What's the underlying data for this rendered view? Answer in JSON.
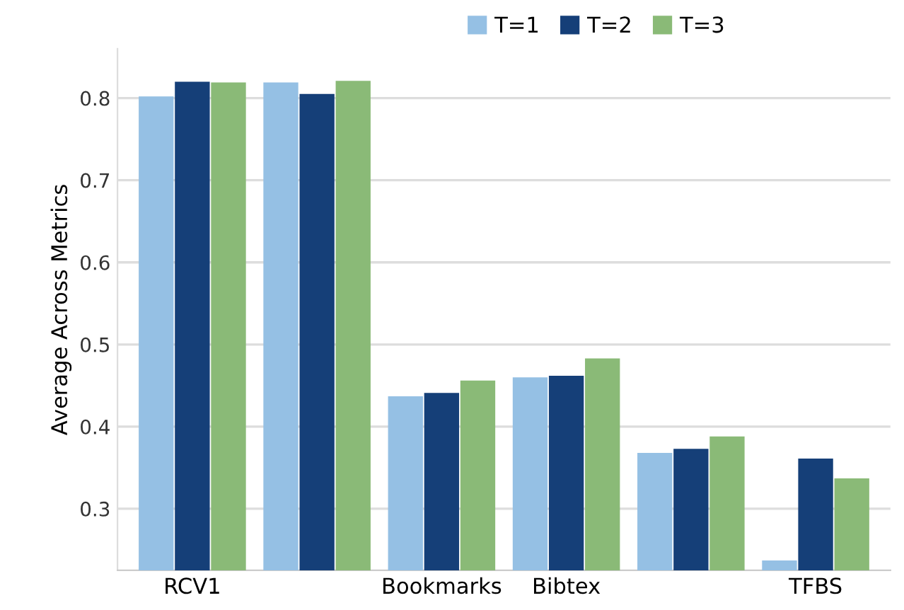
{
  "chart_data": {
    "type": "bar",
    "ylabel": "Average Across Metrics",
    "categories": [
      "RCV1",
      null,
      "Bookmarks",
      "Bibtex",
      null,
      "TFBS"
    ],
    "series": [
      {
        "name": "T=1",
        "color": "#95c0e4",
        "values": [
          0.802,
          0.819,
          0.437,
          0.46,
          0.368,
          0.237
        ]
      },
      {
        "name": "T=2",
        "color": "#153f78",
        "values": [
          0.82,
          0.805,
          0.441,
          0.462,
          0.373,
          0.361
        ]
      },
      {
        "name": "T=3",
        "color": "#8aba77",
        "values": [
          0.819,
          0.821,
          0.456,
          0.483,
          0.388,
          0.337
        ]
      }
    ],
    "ylim": [
      0.225,
      0.86
    ],
    "yticks": [
      0.3,
      0.4,
      0.5,
      0.6,
      0.7,
      0.8
    ],
    "grid": "y",
    "legend": "top"
  }
}
